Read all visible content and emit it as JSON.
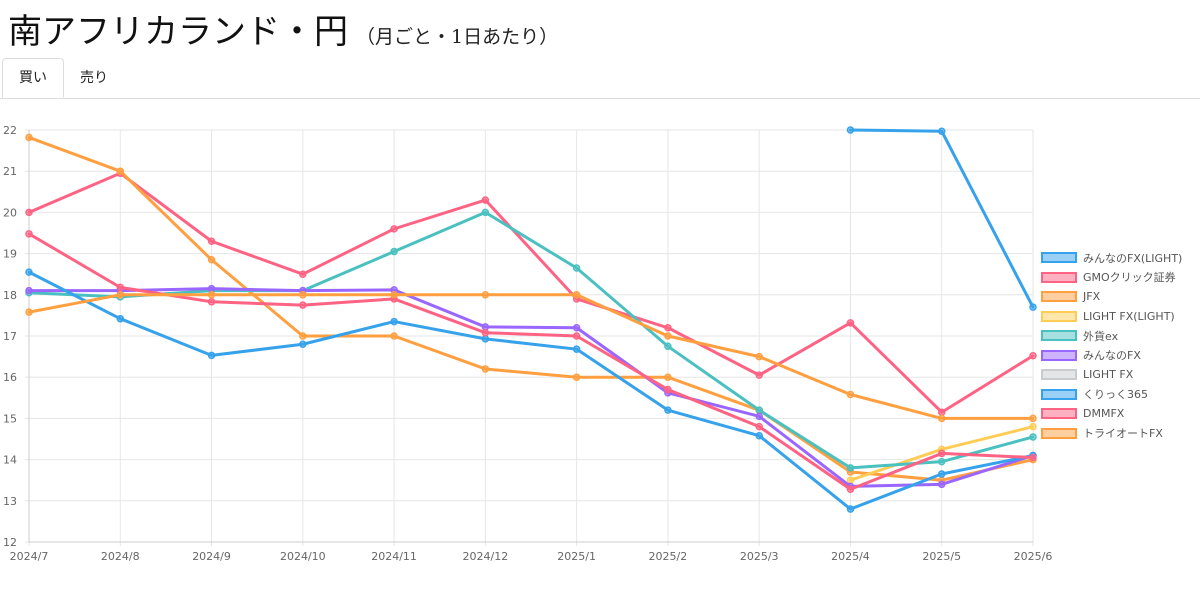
{
  "header": {
    "title": "南アフリカランド・円",
    "subtitle": "（月ごと・1日あたり）"
  },
  "tabs": [
    {
      "label": "買い",
      "active": true
    },
    {
      "label": "売り",
      "active": false
    }
  ],
  "chart_data": {
    "type": "line",
    "title": "",
    "xlabel": "",
    "ylabel": "",
    "ylim": [
      12,
      22
    ],
    "yticks": [
      12,
      13,
      14,
      15,
      16,
      17,
      18,
      19,
      20,
      21,
      22
    ],
    "grid": true,
    "legend_position": "right",
    "categories": [
      "2024/7",
      "2024/8",
      "2024/9",
      "2024/10",
      "2024/11",
      "2024/12",
      "2025/1",
      "2025/2",
      "2025/3",
      "2025/4",
      "2025/5",
      "2025/6"
    ],
    "series": [
      {
        "name": "みんなのFX(LIGHT)",
        "color": "#36a2eb",
        "values": [
          null,
          null,
          null,
          null,
          null,
          null,
          null,
          null,
          null,
          22.0,
          21.97,
          17.7
        ]
      },
      {
        "name": "GMOクリック証券",
        "color": "#ff6384",
        "values": [
          20.0,
          20.95,
          19.3,
          18.5,
          19.6,
          20.3,
          17.9,
          17.2,
          16.05,
          17.32,
          15.15,
          16.52
        ]
      },
      {
        "name": "JFX",
        "color": "#ff9f40",
        "values": [
          21.82,
          21.0,
          18.85,
          17.0,
          17.0,
          16.2,
          16.0,
          16.0,
          15.2,
          13.7,
          13.5,
          14.0
        ]
      },
      {
        "name": "LIGHT FX(LIGHT)",
        "color": "#ffcd56",
        "values": [
          null,
          null,
          null,
          null,
          null,
          null,
          null,
          null,
          null,
          13.5,
          14.25,
          14.8
        ]
      },
      {
        "name": "外貨ex",
        "color": "#4bc0c0",
        "values": [
          18.05,
          17.95,
          18.1,
          18.1,
          19.05,
          20.0,
          18.65,
          16.75,
          15.2,
          13.8,
          13.95,
          14.55
        ]
      },
      {
        "name": "みんなのFX",
        "color": "#9966ff",
        "values": [
          18.1,
          18.1,
          18.15,
          18.1,
          18.12,
          17.22,
          17.2,
          15.62,
          15.05,
          13.35,
          13.4,
          14.1
        ]
      },
      {
        "name": "LIGHT FX",
        "color": "#c9cbcf",
        "values": [
          null,
          null,
          null,
          null,
          null,
          null,
          null,
          null,
          null,
          null,
          null,
          null
        ]
      },
      {
        "name": "くりっく365",
        "color": "#36a2eb",
        "values": [
          18.55,
          17.42,
          16.53,
          16.8,
          17.35,
          16.93,
          16.68,
          15.2,
          14.58,
          12.8,
          13.65,
          14.1
        ]
      },
      {
        "name": "DMMFX",
        "color": "#ff6384",
        "values": [
          19.48,
          18.18,
          17.83,
          17.75,
          17.9,
          17.08,
          17.0,
          15.7,
          14.8,
          13.28,
          14.15,
          14.05
        ]
      },
      {
        "name": "トライオートFX",
        "color": "#ff9f40",
        "values": [
          17.58,
          18.0,
          18.0,
          18.0,
          18.0,
          18.0,
          18.0,
          17.0,
          16.5,
          15.58,
          15.0,
          15.0
        ]
      }
    ]
  }
}
